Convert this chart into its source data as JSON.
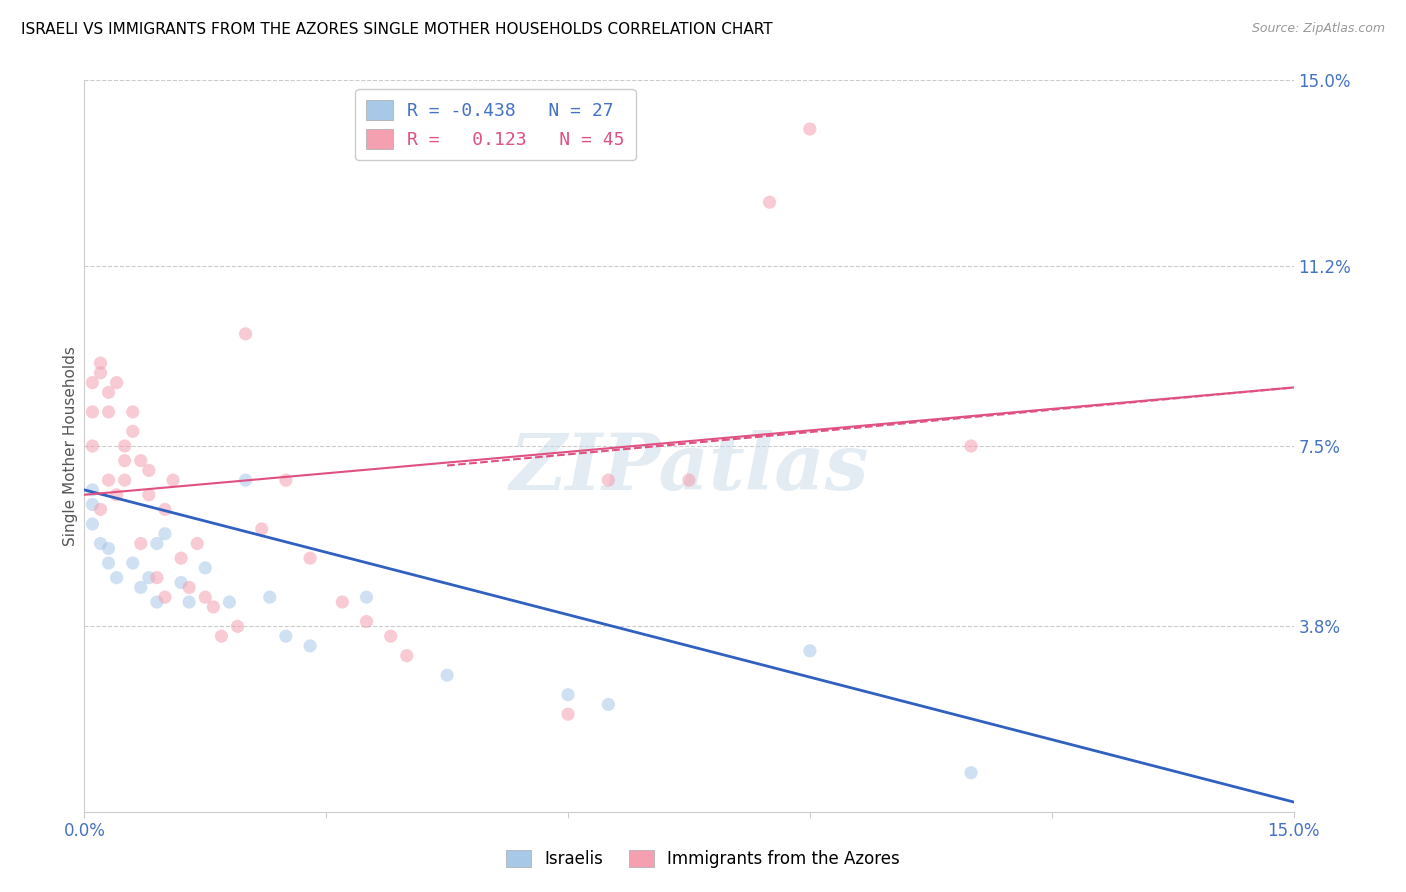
{
  "title": "ISRAELI VS IMMIGRANTS FROM THE AZORES SINGLE MOTHER HOUSEHOLDS CORRELATION CHART",
  "source": "Source: ZipAtlas.com",
  "ylabel": "Single Mother Households",
  "xlim": [
    0,
    0.15
  ],
  "ylim": [
    0,
    0.15
  ],
  "ytick_vals": [
    0.038,
    0.075,
    0.112,
    0.15
  ],
  "ytick_labels": [
    "3.8%",
    "7.5%",
    "11.2%",
    "15.0%"
  ],
  "watermark": "ZIPatlas",
  "israelis_x": [
    0.001,
    0.001,
    0.001,
    0.002,
    0.003,
    0.003,
    0.004,
    0.006,
    0.007,
    0.008,
    0.009,
    0.009,
    0.01,
    0.012,
    0.013,
    0.015,
    0.018,
    0.02,
    0.023,
    0.025,
    0.028,
    0.035,
    0.045,
    0.06,
    0.065,
    0.09,
    0.11
  ],
  "israelis_y": [
    0.066,
    0.063,
    0.059,
    0.055,
    0.054,
    0.051,
    0.048,
    0.051,
    0.046,
    0.048,
    0.043,
    0.055,
    0.057,
    0.047,
    0.043,
    0.05,
    0.043,
    0.068,
    0.044,
    0.036,
    0.034,
    0.044,
    0.028,
    0.024,
    0.022,
    0.033,
    0.008
  ],
  "azores_x": [
    0.001,
    0.001,
    0.001,
    0.002,
    0.002,
    0.002,
    0.003,
    0.003,
    0.003,
    0.004,
    0.004,
    0.005,
    0.005,
    0.005,
    0.006,
    0.006,
    0.007,
    0.007,
    0.008,
    0.008,
    0.009,
    0.01,
    0.01,
    0.011,
    0.012,
    0.013,
    0.014,
    0.015,
    0.016,
    0.017,
    0.019,
    0.02,
    0.022,
    0.025,
    0.028,
    0.032,
    0.035,
    0.038,
    0.04,
    0.06,
    0.065,
    0.075,
    0.085,
    0.09,
    0.11
  ],
  "azores_y": [
    0.075,
    0.082,
    0.088,
    0.09,
    0.092,
    0.062,
    0.086,
    0.082,
    0.068,
    0.088,
    0.065,
    0.075,
    0.072,
    0.068,
    0.082,
    0.078,
    0.072,
    0.055,
    0.07,
    0.065,
    0.048,
    0.062,
    0.044,
    0.068,
    0.052,
    0.046,
    0.055,
    0.044,
    0.042,
    0.036,
    0.038,
    0.098,
    0.058,
    0.068,
    0.052,
    0.043,
    0.039,
    0.036,
    0.032,
    0.02,
    0.068,
    0.068,
    0.125,
    0.14,
    0.075
  ],
  "blue_line_x": [
    0.0,
    0.15
  ],
  "blue_line_y": [
    0.066,
    0.002
  ],
  "pink_solid_line_x": [
    0.0,
    0.075
  ],
  "pink_solid_line_y": [
    0.065,
    0.075
  ],
  "pink_dashed_line_x": [
    0.075,
    0.15
  ],
  "pink_dashed_line_y": [
    0.075,
    0.085
  ],
  "scatter_alpha": 0.55,
  "scatter_size": 90,
  "blue_color": "#a8c8e8",
  "pink_color": "#f4a0b0",
  "blue_line_color": "#3060c0",
  "pink_line_color": "#e05080",
  "background_color": "#ffffff",
  "grid_color": "#cccccc"
}
